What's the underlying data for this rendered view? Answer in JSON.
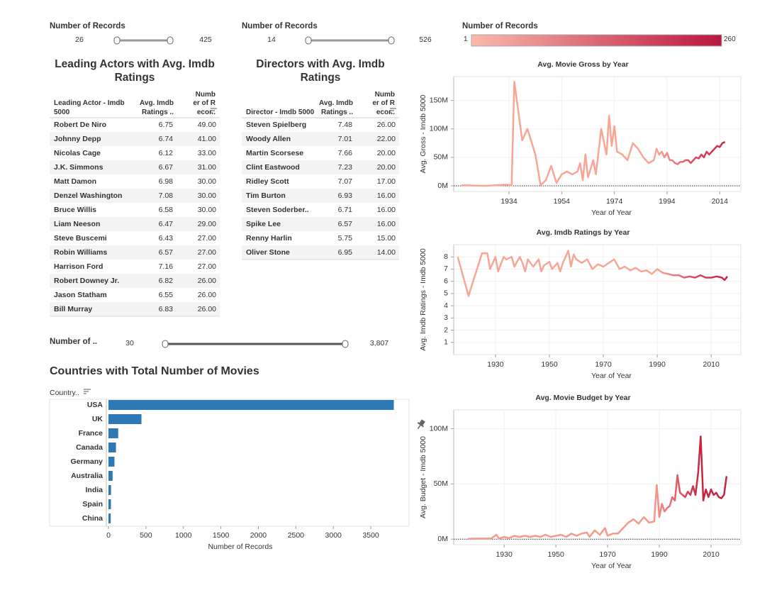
{
  "filters": [
    {
      "label": "Number of Records",
      "min": "26",
      "max": "425"
    },
    {
      "label": "Number of Records",
      "min": "14",
      "max": "526"
    },
    {
      "label": "Number of ..",
      "min": "30",
      "max": "3,807"
    }
  ],
  "color_legend": {
    "label": "Number of Records",
    "min": "1",
    "max": "260",
    "colors": [
      "#fbb9aa",
      "#b9173f"
    ]
  },
  "tables": [
    {
      "title": "Leading Actors with Avg. Imdb Ratings",
      "columns": [
        "Leading Actor - Imdb 5000",
        "Avg. Imdb Ratings ..",
        "Numb er of R ecor.."
      ],
      "rows": [
        [
          "Robert De Niro",
          "6.75",
          "49.00"
        ],
        [
          "Johnny Depp",
          "6.74",
          "41.00"
        ],
        [
          "Nicolas Cage",
          "6.12",
          "33.00"
        ],
        [
          "J.K. Simmons",
          "6.67",
          "31.00"
        ],
        [
          "Matt Damon",
          "6.98",
          "30.00"
        ],
        [
          "Denzel Washington",
          "7.08",
          "30.00"
        ],
        [
          "Bruce Willis",
          "6.58",
          "30.00"
        ],
        [
          "Liam Neeson",
          "6.47",
          "29.00"
        ],
        [
          "Steve Buscemi",
          "6.43",
          "27.00"
        ],
        [
          "Robin Williams",
          "6.57",
          "27.00"
        ],
        [
          "Harrison Ford",
          "7.16",
          "27.00"
        ],
        [
          "Robert Downey Jr.",
          "6.82",
          "26.00"
        ],
        [
          "Jason Statham",
          "6.55",
          "26.00"
        ],
        [
          "Bill Murray",
          "6.83",
          "26.00"
        ]
      ]
    },
    {
      "title": "Directors with Avg. Imdb Ratings",
      "columns": [
        "Director - Imdb 5000",
        "Avg. Imdb Ratings ..",
        "Numb er of R ecor.."
      ],
      "rows": [
        [
          "Steven Spielberg",
          "7.48",
          "26.00"
        ],
        [
          "Woody Allen",
          "7.01",
          "22.00"
        ],
        [
          "Martin Scorsese",
          "7.66",
          "20.00"
        ],
        [
          "Clint Eastwood",
          "7.23",
          "20.00"
        ],
        [
          "Ridley Scott",
          "7.07",
          "17.00"
        ],
        [
          "Tim Burton",
          "6.93",
          "16.00"
        ],
        [
          "Steven Soderber..",
          "6.71",
          "16.00"
        ],
        [
          "Spike Lee",
          "6.57",
          "16.00"
        ],
        [
          "Renny Harlin",
          "5.75",
          "15.00"
        ],
        [
          "Oliver Stone",
          "6.95",
          "14.00"
        ]
      ]
    }
  ],
  "chart_data": [
    {
      "type": "bar",
      "title": "Countries with Total Number of Movies",
      "ylabel": "Country..",
      "xlabel": "Number of Records",
      "categories": [
        "USA",
        "UK",
        "France",
        "Canada",
        "Germany",
        "Australia",
        "India",
        "Spain",
        "China"
      ],
      "values": [
        3807,
        440,
        130,
        100,
        80,
        55,
        34,
        33,
        30
      ],
      "color": "#2c79b5",
      "xlim": [
        0,
        4010
      ],
      "xticks": [
        0,
        500,
        1000,
        1500,
        2000,
        2500,
        3000,
        3500
      ]
    },
    {
      "type": "line",
      "title": "Avg. Movie Gross by Year",
      "ylabel": "Avg. Gross - Imdb 5000",
      "xlabel": "Year of Year",
      "x": [
        1916,
        1920,
        1925,
        1929,
        1933,
        1935,
        1936,
        1939,
        1941,
        1944,
        1946,
        1948,
        1950,
        1952,
        1954,
        1956,
        1958,
        1960,
        1961,
        1962,
        1963,
        1964,
        1966,
        1967,
        1969,
        1971,
        1972,
        1973,
        1974,
        1975,
        1977,
        1979,
        1981,
        1983,
        1985,
        1987,
        1989,
        1990,
        1991,
        1992,
        1993,
        1994,
        1995,
        1996,
        1997,
        1998,
        1999,
        2000,
        2001,
        2002,
        2003,
        2004,
        2005,
        2006,
        2007,
        2008,
        2009,
        2010,
        2011,
        2012,
        2013,
        2014,
        2015,
        2016
      ],
      "values": [
        1000000,
        500000,
        0,
        1000000,
        2000000,
        1000000,
        183000000,
        80000000,
        100000000,
        55000000,
        1000000,
        10000000,
        35000000,
        5000000,
        20000000,
        25000000,
        20000000,
        25000000,
        40000000,
        10000000,
        55000000,
        15000000,
        45000000,
        20000000,
        100000000,
        55000000,
        123000000,
        70000000,
        105000000,
        60000000,
        55000000,
        45000000,
        75000000,
        65000000,
        50000000,
        40000000,
        45000000,
        65000000,
        55000000,
        60000000,
        50000000,
        58000000,
        45000000,
        45000000,
        40000000,
        38000000,
        42000000,
        42000000,
        45000000,
        45000000,
        40000000,
        45000000,
        50000000,
        48000000,
        55000000,
        50000000,
        60000000,
        55000000,
        60000000,
        65000000,
        70000000,
        68000000,
        75000000,
        77000000
      ],
      "color_stops": [
        {
          "x": 1990,
          "color": "#f8a595"
        },
        {
          "x": 2004,
          "color": "#db4a5e"
        },
        {
          "x": 2016,
          "color": "#c9283f"
        }
      ],
      "xlim": [
        1913,
        2022
      ],
      "ylim": [
        -10000000,
        192000000
      ],
      "xticks": [
        1934,
        1954,
        1974,
        1994,
        2014
      ],
      "yticks": [
        {
          "value": 0,
          "label": "0M"
        },
        {
          "value": 50000000,
          "label": "50M"
        },
        {
          "value": 100000000,
          "label": "100M"
        },
        {
          "value": 150000000,
          "label": "150M"
        }
      ],
      "grid": true
    },
    {
      "type": "line",
      "title": "Avg. Imdb Ratings by Year",
      "ylabel": "Avg. Imdb Ratings - Imdb 5000",
      "xlabel": "Year of Year",
      "x": [
        1916,
        1920,
        1925,
        1927,
        1928,
        1930,
        1931,
        1933,
        1934,
        1936,
        1937,
        1939,
        1940,
        1941,
        1942,
        1944,
        1946,
        1947,
        1948,
        1950,
        1951,
        1953,
        1954,
        1955,
        1957,
        1958,
        1959,
        1960,
        1962,
        1964,
        1966,
        1968,
        1970,
        1972,
        1974,
        1976,
        1978,
        1980,
        1982,
        1984,
        1986,
        1988,
        1990,
        1992,
        1994,
        1996,
        1998,
        2000,
        2002,
        2004,
        2006,
        2008,
        2010,
        2012,
        2014,
        2015,
        2016
      ],
      "values": [
        8.0,
        4.8,
        8.3,
        8.3,
        7.0,
        8.0,
        6.8,
        8.0,
        7.8,
        8.0,
        7.2,
        8.0,
        7.5,
        6.8,
        7.8,
        7.2,
        7.8,
        6.8,
        7.3,
        7.6,
        7.0,
        7.5,
        6.8,
        7.5,
        8.5,
        7.2,
        8.2,
        7.8,
        7.5,
        7.8,
        7.0,
        7.4,
        7.2,
        7.5,
        7.8,
        7.0,
        7.2,
        6.9,
        7.1,
        6.8,
        6.9,
        6.6,
        7.0,
        6.7,
        6.6,
        6.5,
        6.5,
        6.3,
        6.4,
        6.3,
        6.5,
        6.3,
        6.3,
        6.4,
        6.3,
        6.1,
        6.4
      ],
      "color_stops": [
        {
          "x": 1990,
          "color": "#f8a595"
        },
        {
          "x": 2004,
          "color": "#d8475c"
        },
        {
          "x": 2016,
          "color": "#c9283f"
        }
      ],
      "xlim": [
        1914.5,
        2021
      ],
      "ylim": [
        0,
        9
      ],
      "xticks": [
        1930,
        1950,
        1970,
        1990,
        2010
      ],
      "yticks": [
        1,
        2,
        3,
        4,
        5,
        6,
        7,
        8
      ],
      "grid": true
    },
    {
      "type": "line",
      "title": "Avg. Movie Budget by Year",
      "ylabel": "Avg. Budget - Imdb 5000",
      "xlabel": "Year of Year",
      "x": [
        1916,
        1920,
        1925,
        1927,
        1928,
        1930,
        1932,
        1934,
        1936,
        1938,
        1940,
        1942,
        1944,
        1946,
        1948,
        1950,
        1952,
        1954,
        1956,
        1958,
        1960,
        1962,
        1963,
        1965,
        1967,
        1969,
        1970,
        1972,
        1974,
        1976,
        1978,
        1980,
        1982,
        1984,
        1986,
        1988,
        1989,
        1990,
        1991,
        1992,
        1993,
        1994,
        1995,
        1996,
        1997,
        1998,
        1999,
        2000,
        2001,
        2002,
        2003,
        2004,
        2005,
        2006,
        2007,
        2008,
        2009,
        2010,
        2011,
        2012,
        2013,
        2014,
        2015,
        2016
      ],
      "values": [
        300000,
        500000,
        500000,
        4000000,
        500000,
        2000000,
        1000000,
        3000000,
        2000000,
        3000000,
        2000000,
        3000000,
        2000000,
        4000000,
        2000000,
        3000000,
        4000000,
        2000000,
        5000000,
        3000000,
        5000000,
        6000000,
        2000000,
        8000000,
        4000000,
        10000000,
        3000000,
        5000000,
        5000000,
        10000000,
        15000000,
        18000000,
        14000000,
        20000000,
        15000000,
        16000000,
        49000000,
        20000000,
        32000000,
        25000000,
        28000000,
        30000000,
        38000000,
        35000000,
        58000000,
        42000000,
        40000000,
        38000000,
        43000000,
        40000000,
        48000000,
        40000000,
        60000000,
        93000000,
        35000000,
        45000000,
        38000000,
        45000000,
        40000000,
        42000000,
        38000000,
        37000000,
        40000000,
        57000000
      ],
      "color_stops": [
        {
          "x": 1988,
          "color": "#f6998a"
        },
        {
          "x": 1997,
          "color": "#e45a66"
        },
        {
          "x": 2006,
          "color": "#c6243f"
        }
      ],
      "xlim": [
        1910.5,
        2021.5
      ],
      "ylim": [
        -5000000,
        117000000
      ],
      "xticks": [
        1930,
        1950,
        1970,
        1990,
        2010
      ],
      "yticks": [
        {
          "value": 0,
          "label": "0M"
        },
        {
          "value": 50000000,
          "label": "50M"
        },
        {
          "value": 100000000,
          "label": "100M"
        }
      ],
      "grid": true
    }
  ]
}
